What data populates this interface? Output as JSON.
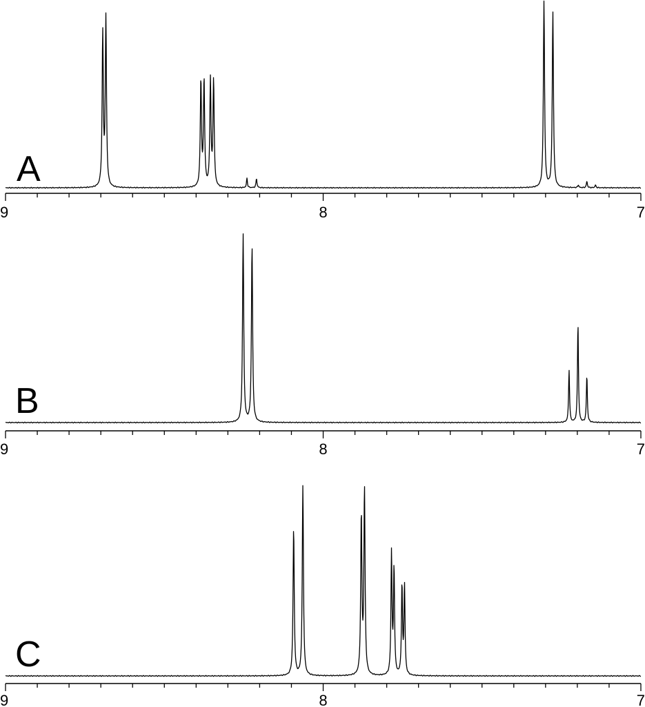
{
  "chart_data": [
    {
      "type": "line",
      "panel_label": "A",
      "x_axis": {
        "ticks": [
          9,
          8,
          7
        ],
        "tick_labels": [
          "9",
          "8",
          "7"
        ],
        "xlim": [
          9,
          7
        ],
        "reversed": true,
        "minor_tick_step": 0.1
      },
      "y_axis": {
        "visible": false
      },
      "grid": false,
      "peaks": [
        {
          "x": 8.694,
          "height": 0.82,
          "width": 0.0022
        },
        {
          "x": 8.684,
          "height": 0.9,
          "width": 0.0022
        },
        {
          "x": 8.385,
          "height": 0.57,
          "width": 0.0022
        },
        {
          "x": 8.375,
          "height": 0.57,
          "width": 0.0022
        },
        {
          "x": 8.355,
          "height": 0.57,
          "width": 0.0022
        },
        {
          "x": 8.345,
          "height": 0.57,
          "width": 0.0022
        },
        {
          "x": 8.24,
          "height": 0.05,
          "width": 0.0018
        },
        {
          "x": 8.21,
          "height": 0.05,
          "width": 0.0018
        },
        {
          "x": 7.305,
          "height": 1.0,
          "width": 0.0022
        },
        {
          "x": 7.277,
          "height": 0.94,
          "width": 0.0022
        },
        {
          "x": 7.197,
          "height": 0.015,
          "width": 0.0018
        },
        {
          "x": 7.17,
          "height": 0.035,
          "width": 0.0018
        },
        {
          "x": 7.143,
          "height": 0.015,
          "width": 0.0018
        }
      ]
    },
    {
      "type": "line",
      "panel_label": "B",
      "x_axis": {
        "ticks": [
          9,
          8,
          7
        ],
        "tick_labels": [
          "9",
          "8",
          "7"
        ],
        "xlim": [
          9,
          7
        ],
        "reversed": true,
        "minor_tick_step": 0.1
      },
      "y_axis": {
        "visible": false
      },
      "grid": false,
      "peaks": [
        {
          "x": 8.252,
          "height": 1.0,
          "width": 0.0022
        },
        {
          "x": 8.224,
          "height": 0.94,
          "width": 0.0022
        },
        {
          "x": 7.226,
          "height": 0.28,
          "width": 0.0018
        },
        {
          "x": 7.198,
          "height": 0.53,
          "width": 0.0018
        },
        {
          "x": 7.17,
          "height": 0.25,
          "width": 0.0018
        }
      ]
    },
    {
      "type": "line",
      "panel_label": "C",
      "x_axis": {
        "ticks": [
          9,
          8,
          7
        ],
        "tick_labels": [
          "9",
          "8",
          "7"
        ],
        "xlim": [
          9,
          7
        ],
        "reversed": true,
        "minor_tick_step": 0.1
      },
      "y_axis": {
        "visible": false
      },
      "grid": false,
      "peaks": [
        {
          "x": 8.093,
          "height": 0.78,
          "width": 0.0022
        },
        {
          "x": 8.064,
          "height": 1.0,
          "width": 0.0022
        },
        {
          "x": 7.88,
          "height": 0.84,
          "width": 0.0022
        },
        {
          "x": 7.87,
          "height": 0.98,
          "width": 0.0022
        },
        {
          "x": 7.785,
          "height": 0.64,
          "width": 0.002
        },
        {
          "x": 7.777,
          "height": 0.56,
          "width": 0.002
        },
        {
          "x": 7.752,
          "height": 0.47,
          "width": 0.002
        },
        {
          "x": 7.744,
          "height": 0.47,
          "width": 0.002
        }
      ]
    }
  ]
}
